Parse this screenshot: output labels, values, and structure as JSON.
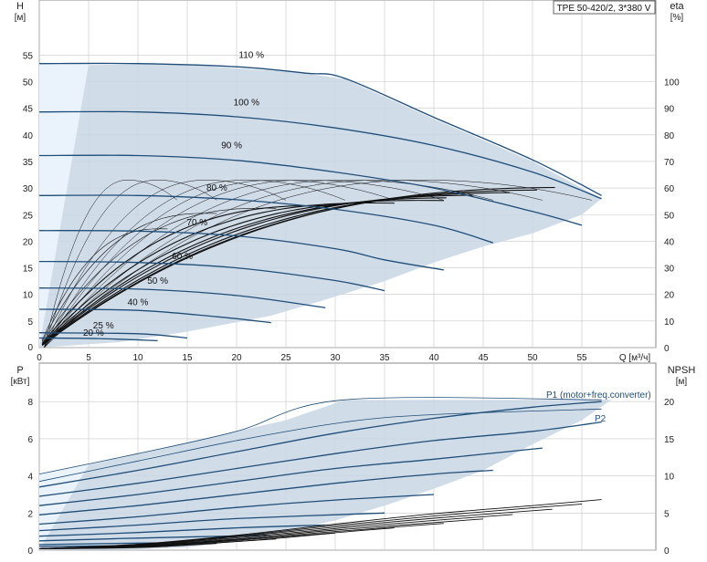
{
  "chart_data": [
    {
      "type": "line",
      "title": "TPE 50-420/2, 3*380 V",
      "ylabel": "H",
      "ylabel_unit": "[м]",
      "y2label": "eta",
      "y2label_unit": "[%]",
      "xlabel": "Q [м³/ч]",
      "xlim": [
        0,
        62
      ],
      "ylim": [
        0,
        60
      ],
      "y2lim": [
        0,
        120
      ],
      "x_ticks": [
        0,
        5,
        10,
        15,
        20,
        25,
        30,
        35,
        40,
        45,
        50,
        55
      ],
      "y_ticks": [
        0,
        5,
        10,
        15,
        20,
        25,
        30,
        35,
        40,
        45,
        50,
        55
      ],
      "y2_ticks": [
        0,
        10,
        20,
        30,
        40,
        50,
        60,
        70,
        80,
        90,
        100
      ],
      "grid": true,
      "operating_area": [
        [
          0,
          53.4
        ],
        [
          5,
          53.1
        ],
        [
          10,
          53.3
        ],
        [
          15,
          53.2
        ],
        [
          20,
          52.5
        ],
        [
          26,
          51.8
        ],
        [
          31,
          50.5
        ],
        [
          40,
          43
        ],
        [
          50,
          35
        ],
        [
          57,
          28
        ],
        [
          55,
          25
        ],
        [
          50,
          21.5
        ],
        [
          45,
          19
        ],
        [
          40,
          16
        ],
        [
          35,
          12.5
        ],
        [
          29,
          9
        ],
        [
          23.5,
          6
        ],
        [
          15,
          3
        ],
        [
          8,
          1
        ],
        [
          0,
          0
        ]
      ],
      "low_flow_zone": [
        [
          0,
          53.4
        ],
        [
          5,
          53.2
        ],
        [
          0,
          0
        ]
      ],
      "speed_curves": [
        {
          "label": "110 %",
          "points": [
            [
              0,
              53.4
            ],
            [
              10,
              53.4
            ],
            [
              20,
              52.8
            ],
            [
              27,
              51.6
            ],
            [
              31,
              50.6
            ],
            [
              40,
              43.3
            ],
            [
              50,
              35.3
            ],
            [
              57,
              28.6
            ]
          ]
        },
        {
          "label": "100 %",
          "points": [
            [
              0,
              44.3
            ],
            [
              10,
              44.3
            ],
            [
              20,
              43.4
            ],
            [
              30,
              41.3
            ],
            [
              40,
              38
            ],
            [
              50,
              33
            ],
            [
              57,
              28
            ]
          ]
        },
        {
          "label": "90 %",
          "points": [
            [
              0,
              36.1
            ],
            [
              10,
              36.1
            ],
            [
              20,
              35.2
            ],
            [
              30,
              33
            ],
            [
              40,
              30
            ],
            [
              50,
              25.6
            ],
            [
              55,
              23
            ]
          ]
        },
        {
          "label": "80 %",
          "points": [
            [
              0,
              28.6
            ],
            [
              10,
              28.6
            ],
            [
              20,
              27.8
            ],
            [
              30,
              26
            ],
            [
              40,
              23
            ],
            [
              46,
              19.7
            ]
          ]
        },
        {
          "label": "70 %",
          "points": [
            [
              0,
              22
            ],
            [
              10,
              21.9
            ],
            [
              20,
              21
            ],
            [
              30,
              18.6
            ],
            [
              35,
              16.5
            ],
            [
              41,
              14.6
            ]
          ]
        },
        {
          "label": "60 %",
          "points": [
            [
              0,
              16.2
            ],
            [
              10,
              16
            ],
            [
              20,
              15
            ],
            [
              30,
              12.6
            ],
            [
              35,
              10.7
            ]
          ]
        },
        {
          "label": "50 %",
          "points": [
            [
              0,
              11.2
            ],
            [
              10,
              11
            ],
            [
              20,
              9.8
            ],
            [
              29,
              7.5
            ]
          ]
        },
        {
          "label": "40 %",
          "points": [
            [
              0,
              7.2
            ],
            [
              10,
              7
            ],
            [
              18,
              5.8
            ],
            [
              23.5,
              4.7
            ]
          ]
        },
        {
          "label": "25 %",
          "points": [
            [
              0,
              2.8
            ],
            [
              10,
              2.6
            ],
            [
              15,
              1.8
            ]
          ]
        },
        {
          "label": "20 %",
          "points": [
            [
              0,
              1.8
            ],
            [
              6,
              1.7
            ],
            [
              12,
              1.3
            ]
          ]
        }
      ],
      "efficiency_curves": [
        {
          "qmax": 57,
          "peak": 62,
          "thick": true
        },
        {
          "qmax": 55,
          "peak": 61,
          "thick": true
        },
        {
          "qmax": 52,
          "peak": 60,
          "thick": true
        },
        {
          "qmax": 48,
          "peak": 59,
          "thick": true
        },
        {
          "qmax": 45,
          "peak": 58,
          "thick": true
        },
        {
          "qmax": 41,
          "peak": 57,
          "thick": true
        },
        {
          "qmax": 36,
          "peak": 56,
          "thick": true
        },
        {
          "qmax": 30,
          "peak": 55,
          "thick": true
        },
        {
          "qmax": 24,
          "peak": 54,
          "thick": false
        },
        {
          "qmax": 18,
          "peak": 52,
          "thick": false
        },
        {
          "qmax": 13,
          "peak": 46,
          "thick": false
        }
      ],
      "efficiency_arcs": [
        {
          "q0": 0.5,
          "qpeak": 9,
          "qend": 14,
          "peak": 63
        },
        {
          "q0": 0.5,
          "qpeak": 12,
          "qend": 18,
          "peak": 63
        },
        {
          "q0": 0.5,
          "qpeak": 17,
          "qend": 25,
          "peak": 63
        },
        {
          "q0": 0.5,
          "qpeak": 21,
          "qend": 31,
          "peak": 63
        },
        {
          "q0": 0.5,
          "qpeak": 24,
          "qend": 36,
          "peak": 63
        },
        {
          "q0": 0.5,
          "qpeak": 27,
          "qend": 41,
          "peak": 63
        },
        {
          "q0": 0.5,
          "qpeak": 31,
          "qend": 46,
          "peak": 63
        },
        {
          "q0": 0.5,
          "qpeak": 35,
          "qend": 51,
          "peak": 63
        },
        {
          "q0": 0.5,
          "qpeak": 39,
          "qend": 56,
          "peak": 63
        }
      ]
    },
    {
      "type": "line",
      "ylabel": "P",
      "ylabel_unit": "[кВт]",
      "y2label": "NPSH",
      "y2label_unit": "[м]",
      "xlim": [
        0,
        62
      ],
      "ylim": [
        0,
        9
      ],
      "y2lim": [
        0,
        22.5
      ],
      "y_ticks": [
        0,
        2,
        4,
        6,
        8
      ],
      "y2_ticks": [
        0,
        5,
        10,
        15,
        20
      ],
      "grid": true,
      "operating_area": [
        [
          0,
          4.1
        ],
        [
          5,
          4.6
        ],
        [
          10,
          5.2
        ],
        [
          15,
          5.8
        ],
        [
          20,
          6.4
        ],
        [
          25,
          7.0
        ],
        [
          31,
          8.1
        ],
        [
          58,
          8.1
        ],
        [
          55,
          7.0
        ],
        [
          50,
          5.7
        ],
        [
          45,
          4.3
        ],
        [
          40,
          3.3
        ],
        [
          35,
          2.4
        ],
        [
          30,
          1.6
        ],
        [
          25,
          1.0
        ],
        [
          20,
          0.45
        ],
        [
          15,
          0.15
        ],
        [
          8,
          0.02
        ],
        [
          0,
          0
        ]
      ],
      "low_flow_zone": [
        [
          0,
          4.1
        ],
        [
          5,
          4.6
        ],
        [
          0,
          0
        ]
      ],
      "power_curves_thin": [
        {
          "points": [
            [
              0,
              4.1
            ],
            [
              10,
              5.2
            ],
            [
              20,
              6.4
            ],
            [
              31,
              8.1
            ],
            [
              57,
              8.1
            ]
          ]
        },
        {
          "points": [
            [
              0,
              3.7
            ],
            [
              10,
              4.8
            ],
            [
              20,
              5.9
            ],
            [
              31,
              6.9
            ],
            [
              40,
              7.3
            ],
            [
              57,
              7.6
            ]
          ]
        }
      ],
      "power_curves": [
        {
          "points": [
            [
              0,
              3.4
            ],
            [
              10,
              4.3
            ],
            [
              20,
              5.3
            ],
            [
              30,
              6.3
            ],
            [
              40,
              7.1
            ],
            [
              50,
              7.7
            ],
            [
              57,
              8.0
            ]
          ]
        },
        {
          "points": [
            [
              0,
              2.9
            ],
            [
              10,
              3.6
            ],
            [
              20,
              4.4
            ],
            [
              30,
              5.2
            ],
            [
              40,
              5.9
            ],
            [
              50,
              6.4
            ],
            [
              57,
              6.9
            ]
          ]
        },
        {
          "points": [
            [
              0,
              2.4
            ],
            [
              10,
              3.0
            ],
            [
              20,
              3.7
            ],
            [
              30,
              4.4
            ],
            [
              40,
              4.9
            ],
            [
              51,
              5.5
            ]
          ]
        },
        {
          "points": [
            [
              0,
              1.9
            ],
            [
              10,
              2.4
            ],
            [
              20,
              3.0
            ],
            [
              30,
              3.6
            ],
            [
              40,
              4.1
            ],
            [
              46,
              4.3
            ]
          ]
        },
        {
          "points": [
            [
              0,
              1.4
            ],
            [
              10,
              1.8
            ],
            [
              20,
              2.3
            ],
            [
              30,
              2.7
            ],
            [
              40,
              3.0
            ]
          ]
        },
        {
          "points": [
            [
              0,
              1.05
            ],
            [
              10,
              1.35
            ],
            [
              20,
              1.7
            ],
            [
              35,
              2.0
            ]
          ]
        },
        {
          "points": [
            [
              0,
              0.75
            ],
            [
              10,
              0.95
            ],
            [
              20,
              1.2
            ],
            [
              29,
              1.35
            ]
          ]
        },
        {
          "points": [
            [
              0,
              0.5
            ],
            [
              10,
              0.65
            ],
            [
              23,
              0.8
            ]
          ]
        },
        {
          "points": [
            [
              0,
              0.3
            ],
            [
              10,
              0.38
            ],
            [
              15,
              0.4
            ]
          ]
        },
        {
          "points": [
            [
              0,
              0.2
            ],
            [
              12,
              0.25
            ]
          ]
        }
      ],
      "npsh_curves": [
        {
          "points": [
            [
              0,
              0.2
            ],
            [
              10,
              0.8
            ],
            [
              20,
              2.0
            ],
            [
              30,
              3.5
            ],
            [
              40,
              4.9
            ],
            [
              50,
              6.0
            ],
            [
              57,
              6.8
            ]
          ]
        },
        {
          "points": [
            [
              0,
              0.2
            ],
            [
              10,
              0.75
            ],
            [
              20,
              1.9
            ],
            [
              30,
              3.3
            ],
            [
              40,
              4.6
            ],
            [
              50,
              5.7
            ],
            [
              55,
              6.2
            ]
          ]
        },
        {
          "points": [
            [
              0,
              0.2
            ],
            [
              10,
              0.7
            ],
            [
              20,
              1.8
            ],
            [
              30,
              3.1
            ],
            [
              40,
              4.3
            ],
            [
              52,
              5.5
            ]
          ]
        },
        {
          "points": [
            [
              0,
              0.2
            ],
            [
              10,
              0.65
            ],
            [
              20,
              1.65
            ],
            [
              30,
              2.9
            ],
            [
              40,
              4.0
            ],
            [
              48,
              4.8
            ]
          ]
        },
        {
          "points": [
            [
              0,
              0.2
            ],
            [
              10,
              0.6
            ],
            [
              20,
              1.5
            ],
            [
              30,
              2.7
            ],
            [
              45,
              4.2
            ]
          ]
        },
        {
          "points": [
            [
              0,
              0.2
            ],
            [
              10,
              0.55
            ],
            [
              20,
              1.4
            ],
            [
              30,
              2.5
            ],
            [
              41,
              3.6
            ]
          ]
        },
        {
          "points": [
            [
              0,
              0.2
            ],
            [
              10,
              0.5
            ],
            [
              20,
              1.3
            ],
            [
              36,
              3.0
            ]
          ]
        },
        {
          "points": [
            [
              0,
              0.2
            ],
            [
              10,
              0.45
            ],
            [
              20,
              1.15
            ],
            [
              30,
              2.3
            ]
          ]
        },
        {
          "points": [
            [
              0,
              0.2
            ],
            [
              10,
              0.4
            ],
            [
              24,
              1.5
            ]
          ]
        },
        {
          "points": [
            [
              0,
              0.2
            ],
            [
              10,
              0.35
            ],
            [
              18,
              0.9
            ]
          ]
        },
        {
          "points": [
            [
              0,
              0.2
            ],
            [
              13,
              0.5
            ]
          ]
        }
      ],
      "annotations": [
        {
          "text": "P1 (motor+freq.converter)",
          "at": [
            51,
            8.5
          ]
        },
        {
          "text": "P2",
          "at": [
            56,
            7.0
          ]
        }
      ]
    }
  ],
  "colors": {
    "curve": "#1f4e79",
    "area": "#c9d6e5",
    "low_flow": "#eaf3fc",
    "grid": "#c8c8c8",
    "eta": "#111111"
  }
}
